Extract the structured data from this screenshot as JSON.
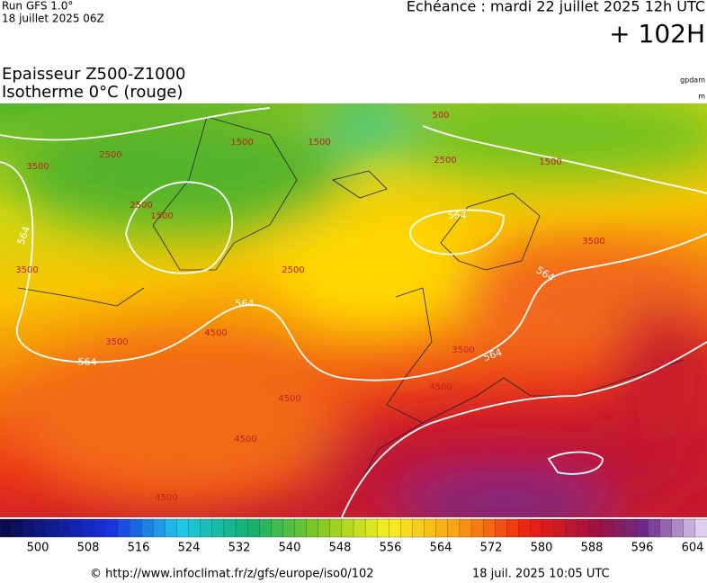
{
  "header": {
    "run": "Run GFS 1.0°",
    "run_date": "18 juillet 2025 06Z",
    "forecast_time": "Echéance : mardi 22 juillet 2025 12h UTC",
    "lead": "+ 102H"
  },
  "title": {
    "line1": "Epaisseur Z500-Z1000",
    "line2": "Isotherme 0°C (rouge)",
    "unit1": "gpdam",
    "unit2": "m"
  },
  "map": {
    "thickness_labels": [
      "564",
      "564",
      "564",
      "564",
      "564",
      "564"
    ],
    "isotherm_labels": [
      "2500",
      "2500",
      "2500",
      "2500",
      "3500",
      "3500",
      "3500",
      "3500",
      "3500",
      "4500",
      "4500",
      "4500",
      "4500",
      "4500",
      "1500",
      "1500",
      "1500",
      "1500",
      "500"
    ]
  },
  "colorbar": {
    "ticks": [
      500,
      508,
      516,
      524,
      532,
      540,
      548,
      556,
      564,
      572,
      580,
      588,
      596,
      604
    ]
  },
  "footer": {
    "source": "© http://www.infoclimat.fr/z/gfs/europe/iso0/102",
    "generated": "18 juil. 2025 10:05 UTC"
  }
}
